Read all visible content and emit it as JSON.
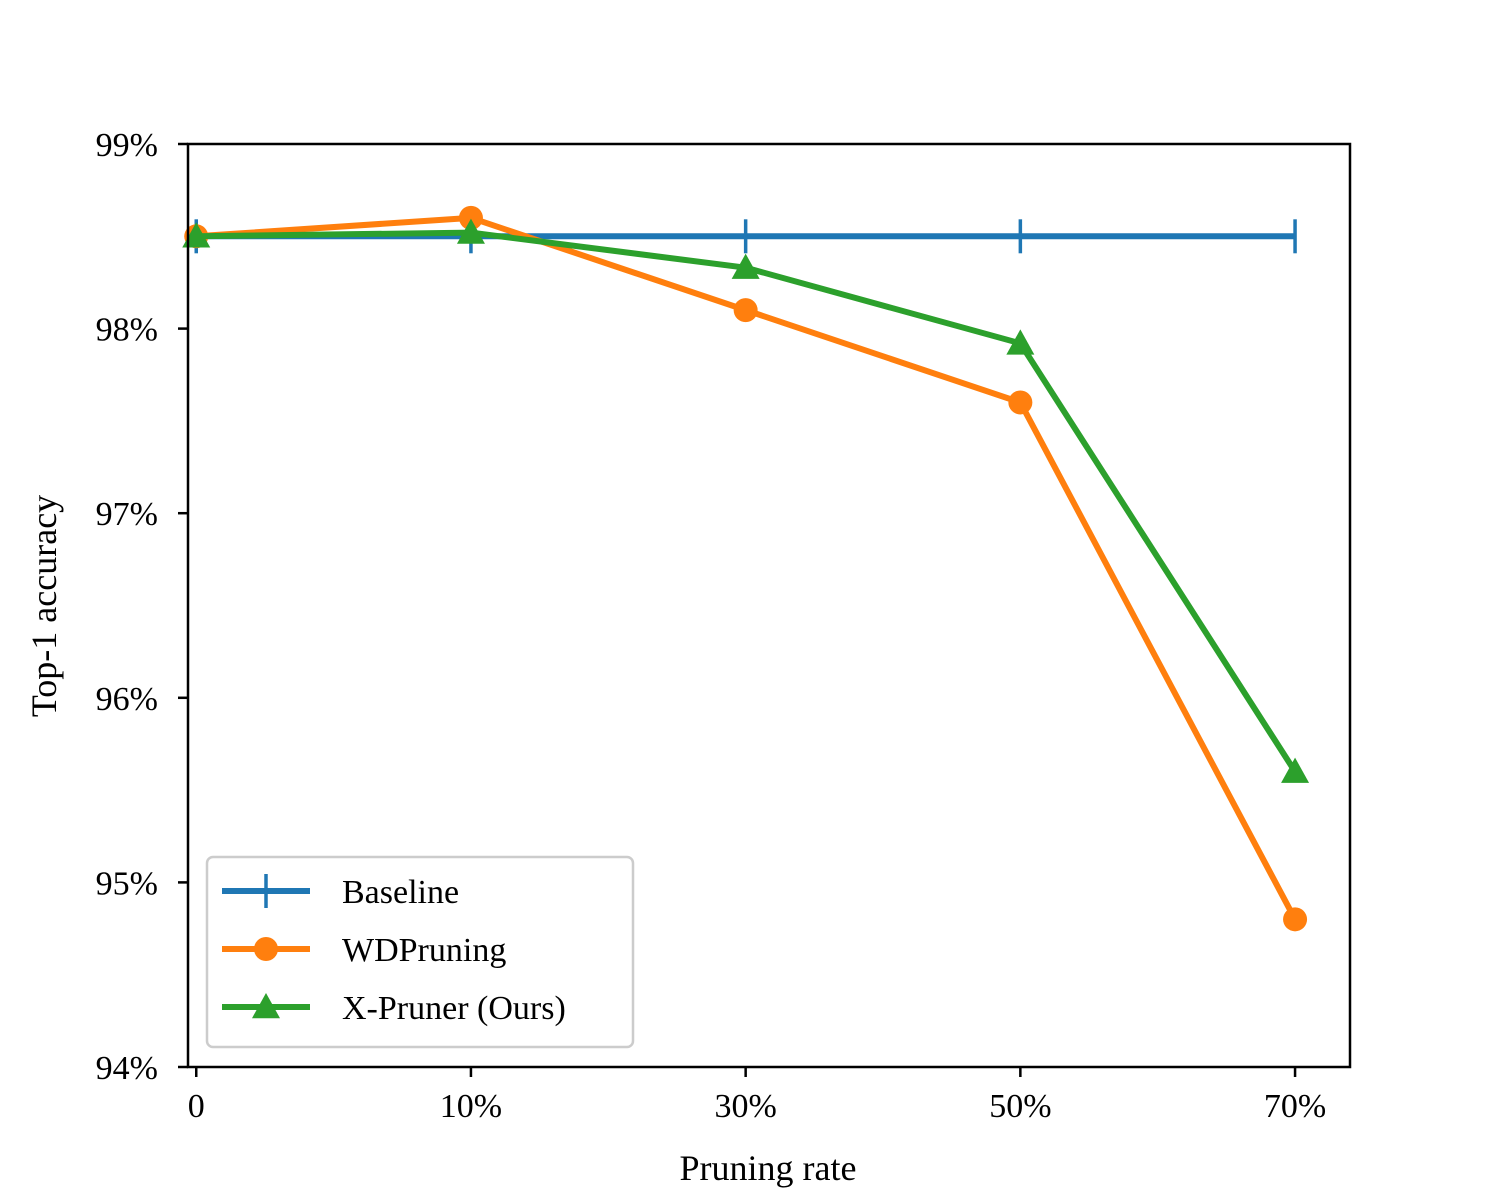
{
  "chart_data": {
    "type": "line",
    "title": "",
    "xlabel": "Pruning rate",
    "ylabel": "Top-1 accuracy",
    "categories": [
      "0",
      "10%",
      "30%",
      "50%",
      "70%"
    ],
    "x": [
      0,
      1,
      2,
      3,
      4
    ],
    "xlim": [
      -0.03,
      4.2
    ],
    "ylim": [
      94,
      99
    ],
    "yticks": [
      94,
      95,
      96,
      97,
      98,
      99
    ],
    "ytick_labels": [
      "94%",
      "95%",
      "96%",
      "97%",
      "98%",
      "99%"
    ],
    "grid": false,
    "legend_position": "lower-left",
    "series": [
      {
        "name": "Baseline",
        "marker": "plus",
        "color": "#1f77b4",
        "values": [
          98.5,
          98.5,
          98.5,
          98.5,
          98.5
        ]
      },
      {
        "name": "WDPruning",
        "marker": "circle",
        "color": "#ff7f0e",
        "values": [
          98.5,
          98.6,
          98.1,
          97.6,
          94.8
        ]
      },
      {
        "name": "X-Pruner (Ours)",
        "marker": "triangle",
        "color": "#2ca02c",
        "values": [
          98.5,
          98.52,
          98.33,
          97.92,
          95.6
        ]
      }
    ]
  }
}
